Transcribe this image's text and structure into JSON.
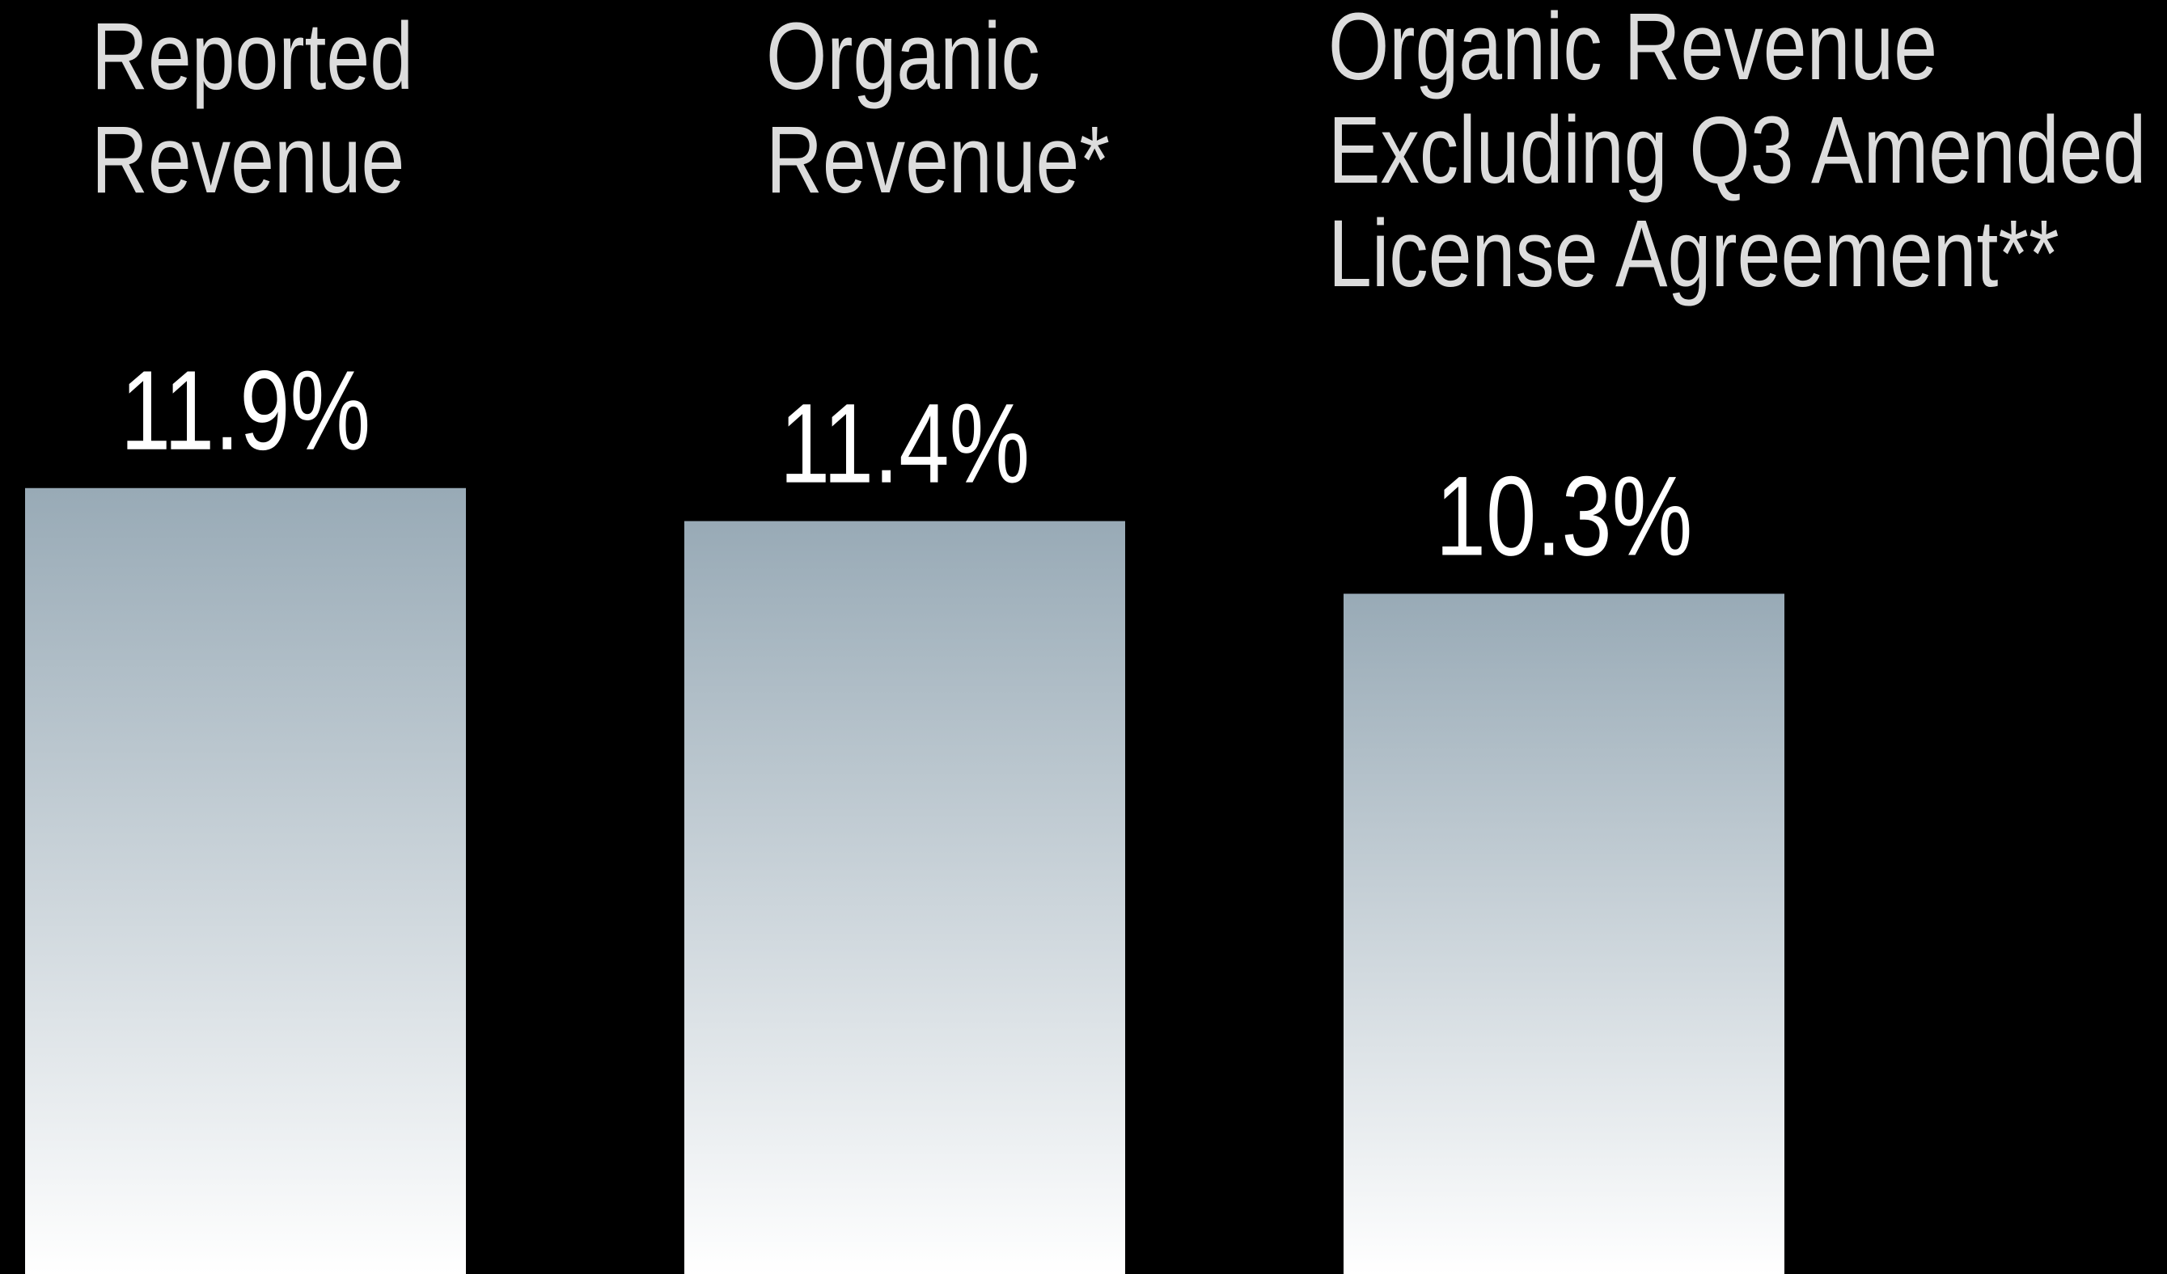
{
  "chart_data": {
    "type": "bar",
    "categories": [
      "Reported Revenue",
      "Organic Revenue*",
      "Organic Revenue Excluding Q3 Amended License Agreement**"
    ],
    "values": [
      11.9,
      11.4,
      10.3
    ],
    "value_labels": [
      "11.9%",
      "11.4%",
      "10.3%"
    ],
    "color": "#98aab6"
  }
}
